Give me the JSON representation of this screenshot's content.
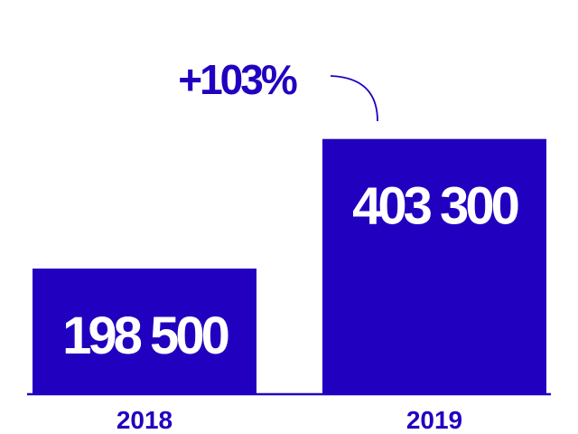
{
  "chart_data": {
    "type": "bar",
    "categories": [
      "2018",
      "2019"
    ],
    "values": [
      198500,
      403300
    ],
    "value_labels": [
      "198 500",
      "403 300"
    ],
    "change_label": "+103%",
    "ylim": [
      0,
      500000
    ],
    "grid": false,
    "colors": {
      "bar": "#2200c0",
      "text": "#2200c0",
      "axis": "#2200c0",
      "value_text": "#ffffff"
    }
  }
}
